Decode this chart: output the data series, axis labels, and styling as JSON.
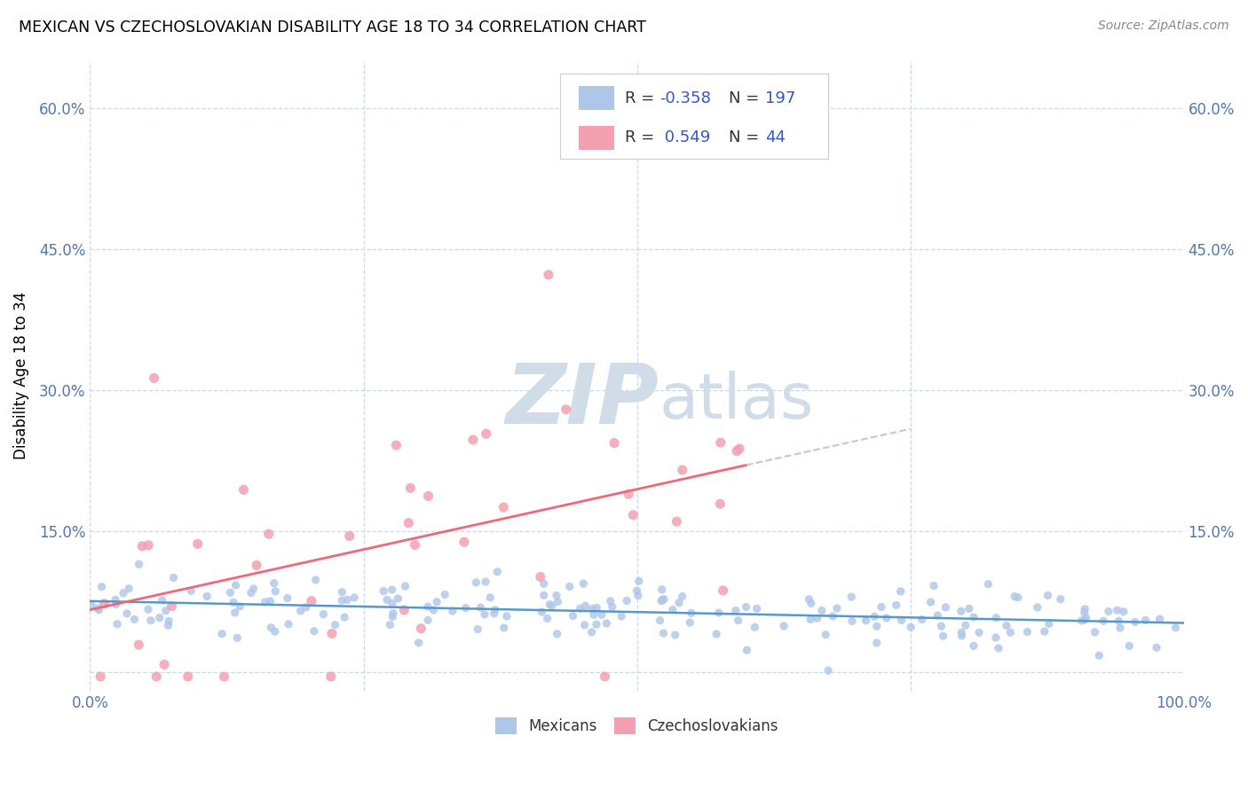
{
  "title": "MEXICAN VS CZECHOSLOVAKIAN DISABILITY AGE 18 TO 34 CORRELATION CHART",
  "source": "Source: ZipAtlas.com",
  "ylabel": "Disability Age 18 to 34",
  "xlim": [
    0.0,
    1.0
  ],
  "ylim": [
    -0.02,
    0.65
  ],
  "xticks": [
    0.0,
    0.25,
    0.5,
    0.75,
    1.0
  ],
  "xtick_labels": [
    "0.0%",
    "",
    "",
    "",
    "100.0%"
  ],
  "yticks": [
    0.0,
    0.15,
    0.3,
    0.45,
    0.6
  ],
  "ytick_labels": [
    "",
    "15.0%",
    "30.0%",
    "45.0%",
    "60.0%"
  ],
  "r_mexican": -0.358,
  "n_mexican": 197,
  "r_czech": 0.549,
  "n_czech": 44,
  "mexican_color": "#aec6e8",
  "czech_color": "#f4a0b0",
  "mexican_line_color": "#5599cc",
  "czech_line_color": "#f06878",
  "czech_dash_color": "#ddbbcc",
  "grid_color": "#c8d8e8",
  "watermark_zip": "ZIP",
  "watermark_atlas": "atlas",
  "watermark_color": "#d0dde8",
  "background_color": "#ffffff",
  "title_fontsize": 12.5,
  "tick_color": "#5577aa",
  "legend_text_color": "#3355cc",
  "legend_r_color": "#3355cc",
  "legend_n_color": "#3355cc"
}
